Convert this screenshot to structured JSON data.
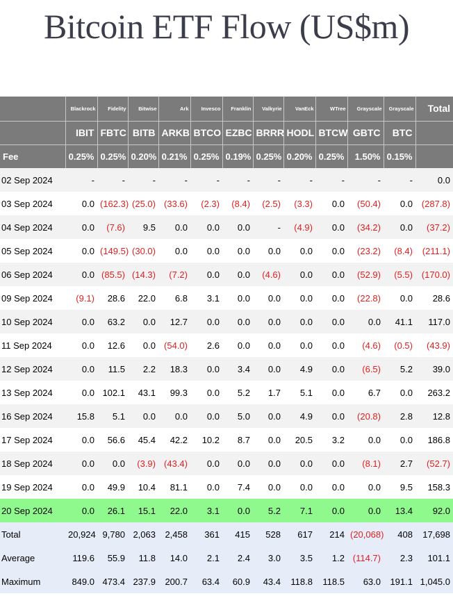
{
  "title": "Bitcoin ETF Flow (US$m)",
  "header": {
    "issuers": [
      "Blackrock",
      "Fidelity",
      "Bitwise",
      "Ark",
      "Invesco",
      "Franklin",
      "Valkyrie",
      "VanEck",
      "WTree",
      "Grayscale",
      "Grayscale"
    ],
    "total_label": "Total",
    "tickers": [
      "IBIT",
      "FBTC",
      "BITB",
      "ARKB",
      "BTCO",
      "EZBC",
      "BRRR",
      "HODL",
      "BTCW",
      "GBTC",
      "BTC"
    ],
    "fee_label": "Fee",
    "fees": [
      "0.25%",
      "0.25%",
      "0.20%",
      "0.21%",
      "0.25%",
      "0.19%",
      "0.25%",
      "0.20%",
      "0.25%",
      "1.50%",
      "0.15%"
    ]
  },
  "rows": [
    {
      "date": "02 Sep 2024",
      "cells": [
        "-",
        "-",
        "-",
        "-",
        "-",
        "-",
        "-",
        "-",
        "-",
        "-",
        "-",
        "0.0"
      ]
    },
    {
      "date": "03 Sep 2024",
      "cells": [
        "0.0",
        "(162.3)",
        "(25.0)",
        "(33.6)",
        "(2.3)",
        "(8.4)",
        "(2.5)",
        "(3.3)",
        "0.0",
        "(50.4)",
        "0.0",
        "(287.8)"
      ]
    },
    {
      "date": "04 Sep 2024",
      "cells": [
        "0.0",
        "(7.6)",
        "9.5",
        "0.0",
        "0.0",
        "0.0",
        "-",
        "(4.9)",
        "0.0",
        "(34.2)",
        "0.0",
        "(37.2)"
      ]
    },
    {
      "date": "05 Sep 2024",
      "cells": [
        "0.0",
        "(149.5)",
        "(30.0)",
        "0.0",
        "0.0",
        "0.0",
        "0.0",
        "0.0",
        "0.0",
        "(23.2)",
        "(8.4)",
        "(211.1)"
      ]
    },
    {
      "date": "06 Sep 2024",
      "cells": [
        "0.0",
        "(85.5)",
        "(14.3)",
        "(7.2)",
        "0.0",
        "0.0",
        "(4.6)",
        "0.0",
        "0.0",
        "(52.9)",
        "(5.5)",
        "(170.0)"
      ]
    },
    {
      "date": "09 Sep 2024",
      "cells": [
        "(9.1)",
        "28.6",
        "22.0",
        "6.8",
        "3.1",
        "0.0",
        "0.0",
        "0.0",
        "0.0",
        "(22.8)",
        "0.0",
        "28.6"
      ]
    },
    {
      "date": "10 Sep 2024",
      "cells": [
        "0.0",
        "63.2",
        "0.0",
        "12.7",
        "0.0",
        "0.0",
        "0.0",
        "0.0",
        "0.0",
        "0.0",
        "41.1",
        "117.0"
      ]
    },
    {
      "date": "11 Sep 2024",
      "cells": [
        "0.0",
        "12.6",
        "0.0",
        "(54.0)",
        "2.6",
        "0.0",
        "0.0",
        "0.0",
        "0.0",
        "(4.6)",
        "(0.5)",
        "(43.9)"
      ]
    },
    {
      "date": "12 Sep 2024",
      "cells": [
        "0.0",
        "11.5",
        "2.2",
        "18.3",
        "0.0",
        "3.4",
        "0.0",
        "4.9",
        "0.0",
        "(6.5)",
        "5.2",
        "39.0"
      ]
    },
    {
      "date": "13 Sep 2024",
      "cells": [
        "0.0",
        "102.1",
        "43.1",
        "99.3",
        "0.0",
        "5.2",
        "1.7",
        "5.1",
        "0.0",
        "6.7",
        "0.0",
        "263.2"
      ]
    },
    {
      "date": "16 Sep 2024",
      "cells": [
        "15.8",
        "5.1",
        "0.0",
        "0.0",
        "0.0",
        "5.0",
        "0.0",
        "4.9",
        "0.0",
        "(20.8)",
        "2.8",
        "12.8"
      ]
    },
    {
      "date": "17 Sep 2024",
      "cells": [
        "0.0",
        "56.6",
        "45.4",
        "42.2",
        "10.2",
        "8.7",
        "0.0",
        "20.5",
        "3.2",
        "0.0",
        "0.0",
        "186.8"
      ]
    },
    {
      "date": "18 Sep 2024",
      "cells": [
        "0.0",
        "0.0",
        "(3.9)",
        "(43.4)",
        "0.0",
        "0.0",
        "0.0",
        "0.0",
        "0.0",
        "(8.1)",
        "2.7",
        "(52.7)"
      ]
    },
    {
      "date": "19 Sep 2024",
      "cells": [
        "0.0",
        "49.9",
        "10.4",
        "81.1",
        "0.0",
        "7.4",
        "0.0",
        "0.0",
        "0.0",
        "0.0",
        "9.5",
        "158.3"
      ]
    },
    {
      "date": "20 Sep 2024",
      "cells": [
        "0.0",
        "26.1",
        "15.1",
        "22.0",
        "3.1",
        "0.0",
        "5.2",
        "7.1",
        "0.0",
        "0.0",
        "13.4",
        "92.0"
      ],
      "highlight": true
    }
  ],
  "summary": [
    {
      "label": "Total",
      "cells": [
        "20,924",
        "9,780",
        "2,063",
        "2,458",
        "361",
        "415",
        "528",
        "617",
        "214",
        "(20,068)",
        "408",
        "17,698"
      ]
    },
    {
      "label": "Average",
      "cells": [
        "119.6",
        "55.9",
        "11.8",
        "14.0",
        "2.1",
        "2.4",
        "3.0",
        "3.5",
        "1.2",
        "(114.7)",
        "2.3",
        "101.1"
      ]
    },
    {
      "label": "Maximum",
      "cells": [
        "849.0",
        "473.4",
        "237.9",
        "200.7",
        "63.4",
        "60.9",
        "43.4",
        "118.8",
        "118.5",
        "63.0",
        "191.1",
        "1,045.0"
      ]
    }
  ],
  "colors": {
    "header_bg": "#7b7b7b",
    "negative": "#e02020",
    "highlight": "#90f98d",
    "summary_bg": "#e7edf8"
  }
}
